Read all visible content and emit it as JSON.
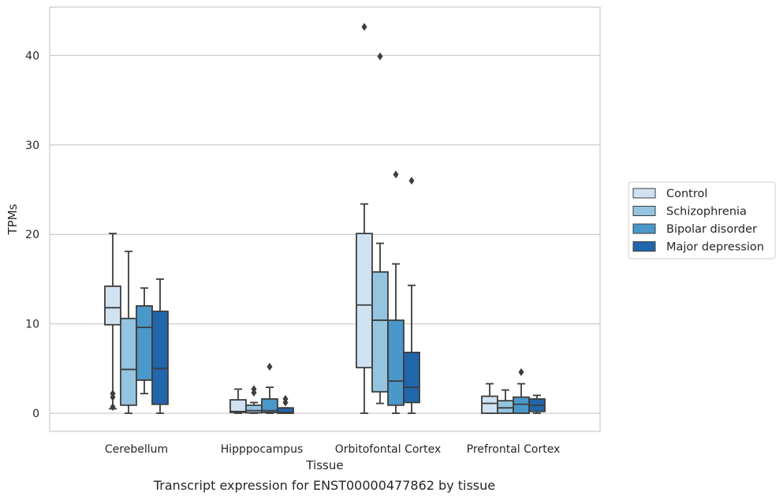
{
  "chart_data": {
    "type": "box",
    "caption": "Transcript expression for ENST00000477862 by tissue",
    "xlabel": "Tissue",
    "ylabel": "TPMs",
    "ylim": [
      -2,
      45.5
    ],
    "yticks": [
      0,
      10,
      20,
      30,
      40
    ],
    "grid": "horizontal",
    "legend_position": "right",
    "categories": [
      "Cerebellum",
      "Hipppocampus",
      "Orbitofontal Cortex",
      "Prefrontal Cortex"
    ],
    "series": [
      {
        "name": "Control",
        "color": "#d0e1f2",
        "boxes": [
          {
            "whislo": 0.5,
            "q1": 9.9,
            "med": 11.8,
            "q3": 14.2,
            "whishi": 20.1,
            "fliers": [
              2.2,
              1.8,
              0.7
            ]
          },
          {
            "whislo": 0.0,
            "q1": 0.1,
            "med": 0.2,
            "q3": 1.5,
            "whishi": 2.7,
            "fliers": []
          },
          {
            "whislo": 0.0,
            "q1": 5.1,
            "med": 12.1,
            "q3": 20.1,
            "whishi": 23.4,
            "fliers": [
              43.2
            ]
          },
          {
            "whislo": 0.0,
            "q1": 0.0,
            "med": 1.1,
            "q3": 1.9,
            "whishi": 3.3,
            "fliers": []
          }
        ]
      },
      {
        "name": "Schizophrenia",
        "color": "#94c4df",
        "boxes": [
          {
            "whislo": 0.0,
            "q1": 0.9,
            "med": 4.9,
            "q3": 10.6,
            "whishi": 18.1,
            "fliers": []
          },
          {
            "whislo": 0.0,
            "q1": 0.05,
            "med": 0.3,
            "q3": 0.9,
            "whishi": 1.2,
            "fliers": [
              2.7,
              2.3
            ]
          },
          {
            "whislo": 1.1,
            "q1": 2.4,
            "med": 10.4,
            "q3": 15.8,
            "whishi": 19.0,
            "fliers": [
              39.9
            ]
          },
          {
            "whislo": 0.0,
            "q1": 0.0,
            "med": 0.6,
            "q3": 1.4,
            "whishi": 2.6,
            "fliers": []
          }
        ]
      },
      {
        "name": "Bipolar disorder",
        "color": "#4a98c9",
        "boxes": [
          {
            "whislo": 2.2,
            "q1": 3.7,
            "med": 9.6,
            "q3": 12.0,
            "whishi": 14.0,
            "fliers": []
          },
          {
            "whislo": 0.0,
            "q1": 0.1,
            "med": 0.3,
            "q3": 1.6,
            "whishi": 2.9,
            "fliers": [
              5.2
            ]
          },
          {
            "whislo": 0.0,
            "q1": 0.9,
            "med": 3.6,
            "q3": 10.4,
            "whishi": 16.7,
            "fliers": [
              26.7
            ]
          },
          {
            "whislo": 0.0,
            "q1": 0.0,
            "med": 1.0,
            "q3": 1.8,
            "whishi": 3.3,
            "fliers": [
              4.6
            ]
          }
        ]
      },
      {
        "name": "Major depression",
        "color": "#2166ac",
        "boxes": [
          {
            "whislo": 0.0,
            "q1": 1.0,
            "med": 5.0,
            "q3": 11.4,
            "whishi": 15.0,
            "fliers": []
          },
          {
            "whislo": 0.0,
            "q1": 0.0,
            "med": 0.1,
            "q3": 0.6,
            "whishi": 0.6,
            "fliers": [
              1.6,
              1.2
            ]
          },
          {
            "whislo": 0.0,
            "q1": 1.2,
            "med": 2.9,
            "q3": 6.8,
            "whishi": 14.3,
            "fliers": [
              26.0
            ]
          },
          {
            "whislo": 0.0,
            "q1": 0.2,
            "med": 0.9,
            "q3": 1.6,
            "whishi": 2.0,
            "fliers": []
          }
        ]
      }
    ]
  }
}
